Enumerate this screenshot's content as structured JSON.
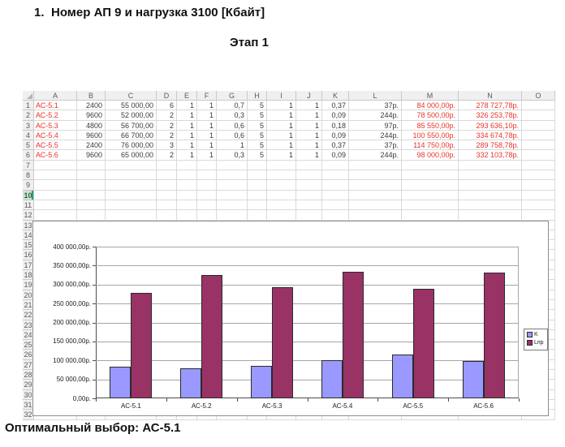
{
  "page": {
    "title_number": "1.",
    "title": "Номер АП 9 и нагрузка 3100 [Кбайт]",
    "subtitle": "Этап 1",
    "footer": "Оптимальный выбор: АС-5.1"
  },
  "colors": {
    "red_text": "#e8332a",
    "cell_text": "#3a3a3a",
    "series_k": "#9999FF",
    "series_lpr": "#993366",
    "selected_row_accent": "#21a366"
  },
  "spreadsheet": {
    "column_headers": [
      "A",
      "B",
      "C",
      "D",
      "E",
      "F",
      "G",
      "H",
      "I",
      "J",
      "K",
      "L",
      "M",
      "N",
      "O"
    ],
    "total_rows": 32,
    "selected_row": 10,
    "red_columns": [
      0,
      12,
      13
    ],
    "rows": [
      [
        "АС-5.1",
        "2400",
        "55 000,00",
        "6",
        "1",
        "1",
        "0,7",
        "5",
        "1",
        "1",
        "0,37",
        "37р.",
        "84 000,00р.",
        "278 727,78р.",
        ""
      ],
      [
        "АС-5.2",
        "9600",
        "52 000,00",
        "2",
        "1",
        "1",
        "0,3",
        "5",
        "1",
        "1",
        "0,09",
        "244р.",
        "78 500,00р.",
        "326 253,78р.",
        ""
      ],
      [
        "АС-5.3",
        "4800",
        "56 700,00",
        "2",
        "1",
        "1",
        "0,6",
        "5",
        "1",
        "1",
        "0,18",
        "97р.",
        "85 550,00р.",
        "293 636,10р.",
        ""
      ],
      [
        "АС-5.4",
        "9600",
        "66 700,00",
        "2",
        "1",
        "1",
        "0,6",
        "5",
        "1",
        "1",
        "0,09",
        "244р.",
        "100 550,00р.",
        "334 674,78р.",
        ""
      ],
      [
        "АС-5.5",
        "2400",
        "76 000,00",
        "3",
        "1",
        "1",
        "1",
        "5",
        "1",
        "1",
        "0,37",
        "37р.",
        "114 750,00р.",
        "289 758,78р.",
        ""
      ],
      [
        "АС-5.6",
        "9600",
        "65 000,00",
        "2",
        "1",
        "1",
        "0,3",
        "5",
        "1",
        "1",
        "0,09",
        "244р.",
        "98 000,00р.",
        "332 103,78р.",
        ""
      ]
    ]
  },
  "chart_data": {
    "type": "bar",
    "categories": [
      "АС-5.1",
      "АС-5.2",
      "АС-5.3",
      "АС-5.4",
      "АС-5.5",
      "АС-5.6"
    ],
    "series": [
      {
        "name": "K",
        "color": "#9999FF",
        "values": [
          84000,
          78500,
          85550,
          100550,
          114750,
          98000
        ]
      },
      {
        "name": "Lпр",
        "color": "#993366",
        "values": [
          278727.78,
          326253.78,
          293636.1,
          334674.78,
          289758.78,
          332103.78
        ]
      }
    ],
    "title": "",
    "xlabel": "",
    "ylabel": "",
    "ylim": [
      0,
      400000
    ],
    "ytick_step": 50000,
    "ytick_suffix": "р.",
    "grid": true,
    "legend_position": "right"
  }
}
